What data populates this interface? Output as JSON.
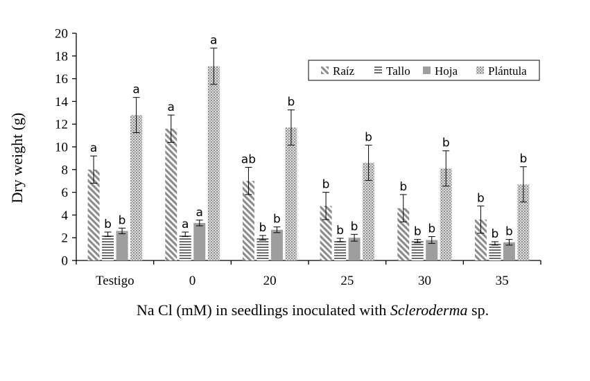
{
  "chart_data": {
    "type": "bar",
    "title": "",
    "ylabel": "Dry weight (g)",
    "xlabel_parts": [
      "Na Cl (mM) in seedlings inoculated with ",
      "Scleroderma",
      " sp."
    ],
    "ylim": [
      0,
      20
    ],
    "yticks": [
      0,
      2,
      4,
      6,
      8,
      10,
      12,
      14,
      16,
      18,
      20
    ],
    "grid": false,
    "legend_position": "top-right",
    "categories": [
      "Testigo",
      "0",
      "20",
      "25",
      "30",
      "35"
    ],
    "series": [
      {
        "name": "Raíz",
        "pattern": "diagonal",
        "values": [
          8.0,
          11.6,
          7.0,
          4.8,
          4.6,
          3.6
        ],
        "errors": [
          1.2,
          1.2,
          1.2,
          1.2,
          1.2,
          1.2
        ],
        "labels": [
          "a",
          "a",
          "ab",
          "b",
          "b",
          "b"
        ]
      },
      {
        "name": "Tallo",
        "pattern": "horizontal",
        "values": [
          2.3,
          2.3,
          2.0,
          1.8,
          1.7,
          1.5
        ],
        "errors": [
          0.2,
          0.2,
          0.2,
          0.15,
          0.15,
          0.15
        ],
        "labels": [
          "b",
          "a",
          "b",
          "b",
          "b",
          "b"
        ]
      },
      {
        "name": "Hoja",
        "pattern": "solid",
        "values": [
          2.6,
          3.3,
          2.7,
          2.0,
          1.8,
          1.6
        ],
        "errors": [
          0.25,
          0.25,
          0.25,
          0.3,
          0.3,
          0.25
        ],
        "labels": [
          "b",
          "a",
          "b",
          "b",
          "b",
          "b"
        ]
      },
      {
        "name": "Plántula",
        "pattern": "dots",
        "values": [
          12.8,
          17.1,
          11.7,
          8.6,
          8.1,
          6.7
        ],
        "errors": [
          1.55,
          1.6,
          1.55,
          1.55,
          1.55,
          1.55
        ],
        "labels": [
          "a",
          "a",
          "b",
          "b",
          "b",
          "b"
        ]
      }
    ],
    "colors": {
      "diagonal_fg": "#8c8c8c",
      "horizontal_fg": "#6e6e6e",
      "solid": "#9e9e9e",
      "dots_fg": "#8f8f8f",
      "axis": "#000000"
    }
  }
}
